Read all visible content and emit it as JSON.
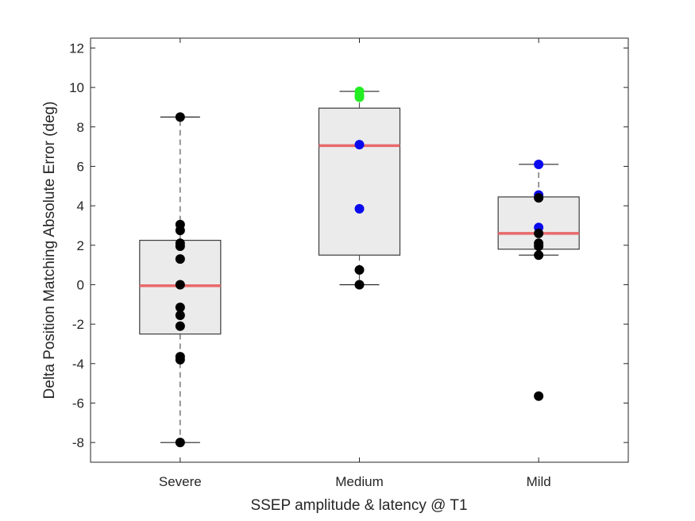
{
  "chart_data": {
    "type": "box",
    "xlabel": "SSEP amplitude & latency @ T1",
    "ylabel": "Delta Position Matching Absolute Error (deg)",
    "ylim": [
      -9,
      12.5
    ],
    "yticks": [
      -8,
      -6,
      -4,
      -2,
      0,
      2,
      4,
      6,
      8,
      10,
      12
    ],
    "categories": [
      "Severe",
      "Medium",
      "Mild"
    ],
    "grid": false,
    "colors": {
      "box_fill": "#ebebeb",
      "box_edge": "#3c3c3c",
      "median": "#e8696b",
      "whisker": "#555555"
    },
    "boxes": [
      {
        "category": "Severe",
        "q1": -2.5,
        "median": -0.05,
        "q3": 2.25,
        "whisker_low": -8.0,
        "whisker_high": 8.5
      },
      {
        "category": "Medium",
        "q1": 1.5,
        "median": 7.05,
        "q3": 8.95,
        "whisker_low": 0.0,
        "whisker_high": 9.8
      },
      {
        "category": "Mild",
        "q1": 1.8,
        "median": 2.6,
        "q3": 4.45,
        "whisker_low": 1.5,
        "whisker_high": 6.1
      }
    ],
    "points": [
      {
        "category": "Severe",
        "y": 8.5,
        "color": "#000000"
      },
      {
        "category": "Severe",
        "y": 3.05,
        "color": "#000000"
      },
      {
        "category": "Severe",
        "y": 2.75,
        "color": "#000000"
      },
      {
        "category": "Severe",
        "y": 2.1,
        "color": "#000000"
      },
      {
        "category": "Severe",
        "y": 1.95,
        "color": "#000000"
      },
      {
        "category": "Severe",
        "y": 1.3,
        "color": "#000000"
      },
      {
        "category": "Severe",
        "y": 0.0,
        "color": "#000000"
      },
      {
        "category": "Severe",
        "y": -1.15,
        "color": "#000000"
      },
      {
        "category": "Severe",
        "y": -1.55,
        "color": "#000000"
      },
      {
        "category": "Severe",
        "y": -2.1,
        "color": "#000000"
      },
      {
        "category": "Severe",
        "y": -3.65,
        "color": "#000000"
      },
      {
        "category": "Severe",
        "y": -3.8,
        "color": "#000000"
      },
      {
        "category": "Severe",
        "y": -8.0,
        "color": "#000000"
      },
      {
        "category": "Medium",
        "y": 9.8,
        "color": "#22ee22"
      },
      {
        "category": "Medium",
        "y": 9.6,
        "color": "#22ee22"
      },
      {
        "category": "Medium",
        "y": 9.5,
        "color": "#22ee22"
      },
      {
        "category": "Medium",
        "y": 7.1,
        "color": "#0a0aee"
      },
      {
        "category": "Medium",
        "y": 3.85,
        "color": "#0a0aee"
      },
      {
        "category": "Medium",
        "y": 0.75,
        "color": "#000000"
      },
      {
        "category": "Medium",
        "y": 0.0,
        "color": "#000000"
      },
      {
        "category": "Mild",
        "y": 6.1,
        "color": "#0a0aee"
      },
      {
        "category": "Mild",
        "y": 4.55,
        "color": "#0a0aee"
      },
      {
        "category": "Mild",
        "y": 4.4,
        "color": "#000000"
      },
      {
        "category": "Mild",
        "y": 2.9,
        "color": "#0a0aee"
      },
      {
        "category": "Mild",
        "y": 2.6,
        "color": "#000000"
      },
      {
        "category": "Mild",
        "y": 2.1,
        "color": "#000000"
      },
      {
        "category": "Mild",
        "y": 1.95,
        "color": "#000000"
      },
      {
        "category": "Mild",
        "y": 1.5,
        "color": "#000000"
      },
      {
        "category": "Mild",
        "y": -5.65,
        "color": "#000000"
      }
    ]
  }
}
